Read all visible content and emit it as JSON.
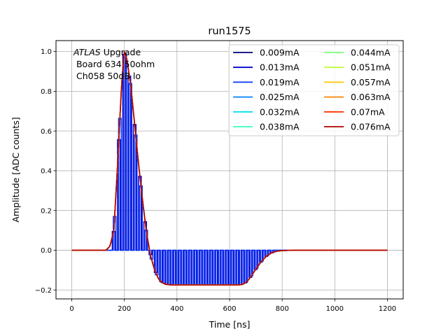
{
  "chart_data": {
    "type": "line",
    "title": "run1575",
    "xlabel": "Time [ns]",
    "ylabel": "Amplitude [ADC counts]",
    "xlim": [
      -60,
      1260
    ],
    "ylim": [
      -0.245,
      1.055
    ],
    "xticks": [
      0,
      200,
      400,
      600,
      800,
      1000,
      1200
    ],
    "yticks": [
      -0.2,
      0.0,
      0.2,
      0.4,
      0.6,
      0.8,
      1.0
    ],
    "xtick_labels": [
      "0",
      "200",
      "400",
      "600",
      "800",
      "1000",
      "1200"
    ],
    "ytick_labels": [
      "−0.2",
      "0.0",
      "0.2",
      "0.4",
      "0.6",
      "0.8",
      "1.0"
    ],
    "grid": true,
    "legend_position": "top-right",
    "legend_columns": 2,
    "annotation": {
      "experiment": "ATLAS",
      "experiment_suffix": " Upgrade",
      "line2": " Board 634 50ohm",
      "line3": " Ch058 50dB lo"
    },
    "pulse_shape": {
      "x": [
        0,
        130,
        145,
        160,
        175,
        190,
        200,
        210,
        225,
        240,
        255,
        270,
        285,
        300,
        315,
        330,
        345,
        360,
        380,
        400,
        450,
        500,
        550,
        600,
        630,
        650,
        665,
        680,
        700,
        720,
        740,
        760,
        780,
        800,
        840,
        900,
        1000,
        1100,
        1200
      ],
      "y": [
        0,
        0,
        0.02,
        0.1,
        0.45,
        0.85,
        1.0,
        0.96,
        0.82,
        0.62,
        0.42,
        0.24,
        0.08,
        -0.03,
        -0.1,
        -0.145,
        -0.165,
        -0.172,
        -0.175,
        -0.175,
        -0.175,
        -0.175,
        -0.175,
        -0.175,
        -0.175,
        -0.172,
        -0.16,
        -0.135,
        -0.095,
        -0.058,
        -0.03,
        -0.013,
        -0.005,
        -0.002,
        0,
        0,
        0,
        0,
        0
      ]
    },
    "sparse_series_pulse_spacing_ns": 20,
    "series": [
      {
        "name": "0.009mA",
        "color": "#00007f"
      },
      {
        "name": "0.013mA",
        "color": "#0000cc"
      },
      {
        "name": "0.019mA",
        "color": "#0033ff"
      },
      {
        "name": "0.025mA",
        "color": "#0080ff"
      },
      {
        "name": "0.032mA",
        "color": "#00ddee"
      },
      {
        "name": "0.038mA",
        "color": "#36ffc0"
      },
      {
        "name": "0.044mA",
        "color": "#7cff79"
      },
      {
        "name": "0.051mA",
        "color": "#c0ff36"
      },
      {
        "name": "0.057mA",
        "color": "#ffc400"
      },
      {
        "name": "0.063mA",
        "color": "#ff8200"
      },
      {
        "name": "0.07mA",
        "color": "#ff3000"
      },
      {
        "name": "0.076mA",
        "color": "#b20000"
      }
    ]
  }
}
